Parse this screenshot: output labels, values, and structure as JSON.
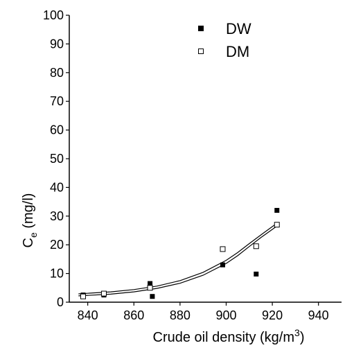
{
  "chart_data": {
    "type": "scatter",
    "title": "",
    "x_ticks": [
      840,
      860,
      880,
      900,
      920,
      940
    ],
    "y_ticks": [
      0,
      10,
      20,
      30,
      40,
      50,
      60,
      70,
      80,
      90,
      100
    ],
    "xlim": [
      832,
      950
    ],
    "ylim": [
      0,
      100
    ],
    "xlabel": {
      "main": "Crude oil density (kg/m",
      "sup": "3",
      "close": ")"
    },
    "ylabel": {
      "main": "C",
      "sub": "e",
      "rest": " (mg/l)"
    },
    "legend_position": "top-right",
    "grid": false,
    "series": [
      {
        "name": "DW",
        "marker": "filled-square",
        "color": "#000000",
        "points": [
          [
            838,
            2.5
          ],
          [
            847,
            2.5
          ],
          [
            867,
            6.5
          ],
          [
            868,
            2
          ],
          [
            898.5,
            13
          ],
          [
            913,
            9.8
          ],
          [
            922,
            32
          ]
        ],
        "fit": {
          "type": "exponential",
          "points": [
            [
              836,
              2.2
            ],
            [
              850,
              2.8
            ],
            [
              860,
              3.6
            ],
            [
              870,
              4.8
            ],
            [
              880,
              6.6
            ],
            [
              890,
              9.4
            ],
            [
              900,
              13.5
            ],
            [
              905,
              16.2
            ],
            [
              910,
              19.4
            ],
            [
              915,
              22.5
            ],
            [
              922,
              26.5
            ]
          ]
        }
      },
      {
        "name": "DM",
        "marker": "open-square",
        "color": "#000000",
        "points": [
          [
            838,
            2
          ],
          [
            847,
            3
          ],
          [
            867,
            5
          ],
          [
            898.5,
            18.5
          ],
          [
            913,
            19.5
          ],
          [
            922,
            27
          ]
        ],
        "fit": {
          "type": "exponential",
          "points": [
            [
              836,
              2.9
            ],
            [
              850,
              3.6
            ],
            [
              860,
              4.4
            ],
            [
              870,
              5.6
            ],
            [
              880,
              7.5
            ],
            [
              890,
              10.4
            ],
            [
              900,
              14.6
            ],
            [
              905,
              17.3
            ],
            [
              910,
              20.4
            ],
            [
              915,
              23.4
            ],
            [
              922,
              27.5
            ]
          ]
        }
      }
    ]
  }
}
